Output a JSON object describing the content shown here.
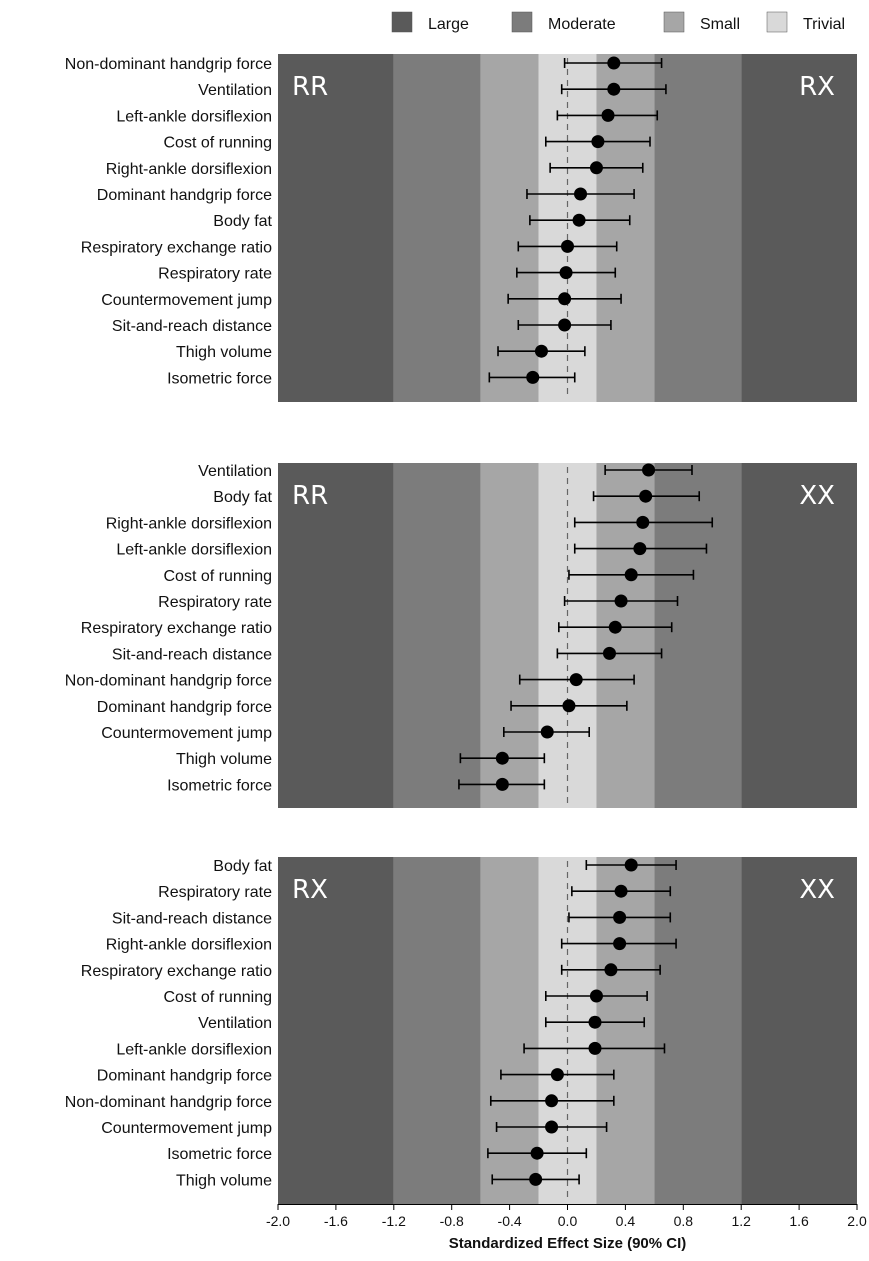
{
  "legend": [
    {
      "label": "Large",
      "color": "#5a5a5a"
    },
    {
      "label": "Moderate",
      "color": "#7c7c7c"
    },
    {
      "label": "Small",
      "color": "#a6a6a6"
    },
    {
      "label": "Trivial",
      "color": "#d9d9d9"
    }
  ],
  "zones": [
    {
      "name": "Large",
      "from": -2.0,
      "to": -1.2,
      "color": "#5a5a5a"
    },
    {
      "name": "Moderate",
      "from": -1.2,
      "to": -0.6,
      "color": "#7c7c7c"
    },
    {
      "name": "Small",
      "from": -0.6,
      "to": -0.2,
      "color": "#a6a6a6"
    },
    {
      "name": "Trivial",
      "from": -0.2,
      "to": 0.2,
      "color": "#d9d9d9"
    },
    {
      "name": "Small",
      "from": 0.2,
      "to": 0.6,
      "color": "#a6a6a6"
    },
    {
      "name": "Moderate",
      "from": 0.6,
      "to": 1.2,
      "color": "#7c7c7c"
    },
    {
      "name": "Large",
      "from": 1.2,
      "to": 2.0,
      "color": "#5a5a5a"
    }
  ],
  "chart_data": [
    {
      "type": "scatter",
      "left_label": "RR",
      "right_label": "RX",
      "xlim": [
        -2.0,
        2.0
      ],
      "series": [
        {
          "values": [
            {
              "label": "Non-dominant handgrip force",
              "est": 0.32,
              "lo": -0.02,
              "hi": 0.65
            },
            {
              "label": "Ventilation",
              "est": 0.32,
              "lo": -0.04,
              "hi": 0.68
            },
            {
              "label": "Left-ankle dorsiflexion",
              "est": 0.28,
              "lo": -0.07,
              "hi": 0.62
            },
            {
              "label": "Cost of running",
              "est": 0.21,
              "lo": -0.15,
              "hi": 0.57
            },
            {
              "label": "Right-ankle dorsiflexion",
              "est": 0.2,
              "lo": -0.12,
              "hi": 0.52
            },
            {
              "label": "Dominant handgrip force",
              "est": 0.09,
              "lo": -0.28,
              "hi": 0.46
            },
            {
              "label": "Body fat",
              "est": 0.08,
              "lo": -0.26,
              "hi": 0.43
            },
            {
              "label": "Respiratory exchange ratio",
              "est": 0.0,
              "lo": -0.34,
              "hi": 0.34
            },
            {
              "label": "Respiratory rate",
              "est": -0.01,
              "lo": -0.35,
              "hi": 0.33
            },
            {
              "label": "Countermovement jump",
              "est": -0.02,
              "lo": -0.41,
              "hi": 0.37
            },
            {
              "label": "Sit-and-reach distance",
              "est": -0.02,
              "lo": -0.34,
              "hi": 0.3
            },
            {
              "label": "Thigh volume",
              "est": -0.18,
              "lo": -0.48,
              "hi": 0.12
            },
            {
              "label": "Isometric force",
              "est": -0.24,
              "lo": -0.54,
              "hi": 0.05
            }
          ]
        }
      ]
    },
    {
      "type": "scatter",
      "left_label": "RR",
      "right_label": "XX",
      "xlim": [
        -2.0,
        2.0
      ],
      "series": [
        {
          "values": [
            {
              "label": "Ventilation",
              "est": 0.56,
              "lo": 0.26,
              "hi": 0.86
            },
            {
              "label": "Body fat",
              "est": 0.54,
              "lo": 0.18,
              "hi": 0.91
            },
            {
              "label": "Right-ankle dorsiflexion",
              "est": 0.52,
              "lo": 0.05,
              "hi": 1.0
            },
            {
              "label": "Left-ankle dorsiflexion",
              "est": 0.5,
              "lo": 0.05,
              "hi": 0.96
            },
            {
              "label": "Cost of running",
              "est": 0.44,
              "lo": 0.01,
              "hi": 0.87
            },
            {
              "label": "Respiratory rate",
              "est": 0.37,
              "lo": -0.02,
              "hi": 0.76
            },
            {
              "label": "Respiratory exchange ratio",
              "est": 0.33,
              "lo": -0.06,
              "hi": 0.72
            },
            {
              "label": "Sit-and-reach distance",
              "est": 0.29,
              "lo": -0.07,
              "hi": 0.65
            },
            {
              "label": "Non-dominant handgrip force",
              "est": 0.06,
              "lo": -0.33,
              "hi": 0.46
            },
            {
              "label": "Dominant  handgrip force",
              "est": 0.01,
              "lo": -0.39,
              "hi": 0.41
            },
            {
              "label": "Countermovement jump",
              "est": -0.14,
              "lo": -0.44,
              "hi": 0.15
            },
            {
              "label": "Thigh volume",
              "est": -0.45,
              "lo": -0.74,
              "hi": -0.16
            },
            {
              "label": "Isometric force",
              "est": -0.45,
              "lo": -0.75,
              "hi": -0.16
            }
          ]
        }
      ]
    },
    {
      "type": "scatter",
      "left_label": "RX",
      "right_label": "XX",
      "xlim": [
        -2.0,
        2.0
      ],
      "xlabel": "Standardized Effect Size (90% CI)",
      "xticks": [
        "-2.0",
        "-1.6",
        "-1.2",
        "-0.8",
        "-0.4",
        "0.0",
        "0.4",
        "0.8",
        "1.2",
        "1.6",
        "2.0"
      ],
      "series": [
        {
          "values": [
            {
              "label": "Body fat",
              "est": 0.44,
              "lo": 0.13,
              "hi": 0.75
            },
            {
              "label": "Respiratory rate",
              "est": 0.37,
              "lo": 0.03,
              "hi": 0.71
            },
            {
              "label": "Sit-and-reach distance",
              "est": 0.36,
              "lo": 0.01,
              "hi": 0.71
            },
            {
              "label": "Right-ankle dorsiflexion",
              "est": 0.36,
              "lo": -0.04,
              "hi": 0.75
            },
            {
              "label": "Respiratory exchange ratio",
              "est": 0.3,
              "lo": -0.04,
              "hi": 0.64
            },
            {
              "label": "Cost of running",
              "est": 0.2,
              "lo": -0.15,
              "hi": 0.55
            },
            {
              "label": "Ventilation",
              "est": 0.19,
              "lo": -0.15,
              "hi": 0.53
            },
            {
              "label": "Left-ankle dorsiflexion",
              "est": 0.19,
              "lo": -0.3,
              "hi": 0.67
            },
            {
              "label": "Dominant handgrip force",
              "est": -0.07,
              "lo": -0.46,
              "hi": 0.32
            },
            {
              "label": "Non-dominant handgrip force",
              "est": -0.11,
              "lo": -0.53,
              "hi": 0.32
            },
            {
              "label": "Countermovement jump",
              "est": -0.11,
              "lo": -0.49,
              "hi": 0.27
            },
            {
              "label": "Isometric force",
              "est": -0.21,
              "lo": -0.55,
              "hi": 0.13
            },
            {
              "label": "Thigh volume",
              "est": -0.22,
              "lo": -0.52,
              "hi": 0.08
            }
          ]
        }
      ]
    }
  ]
}
